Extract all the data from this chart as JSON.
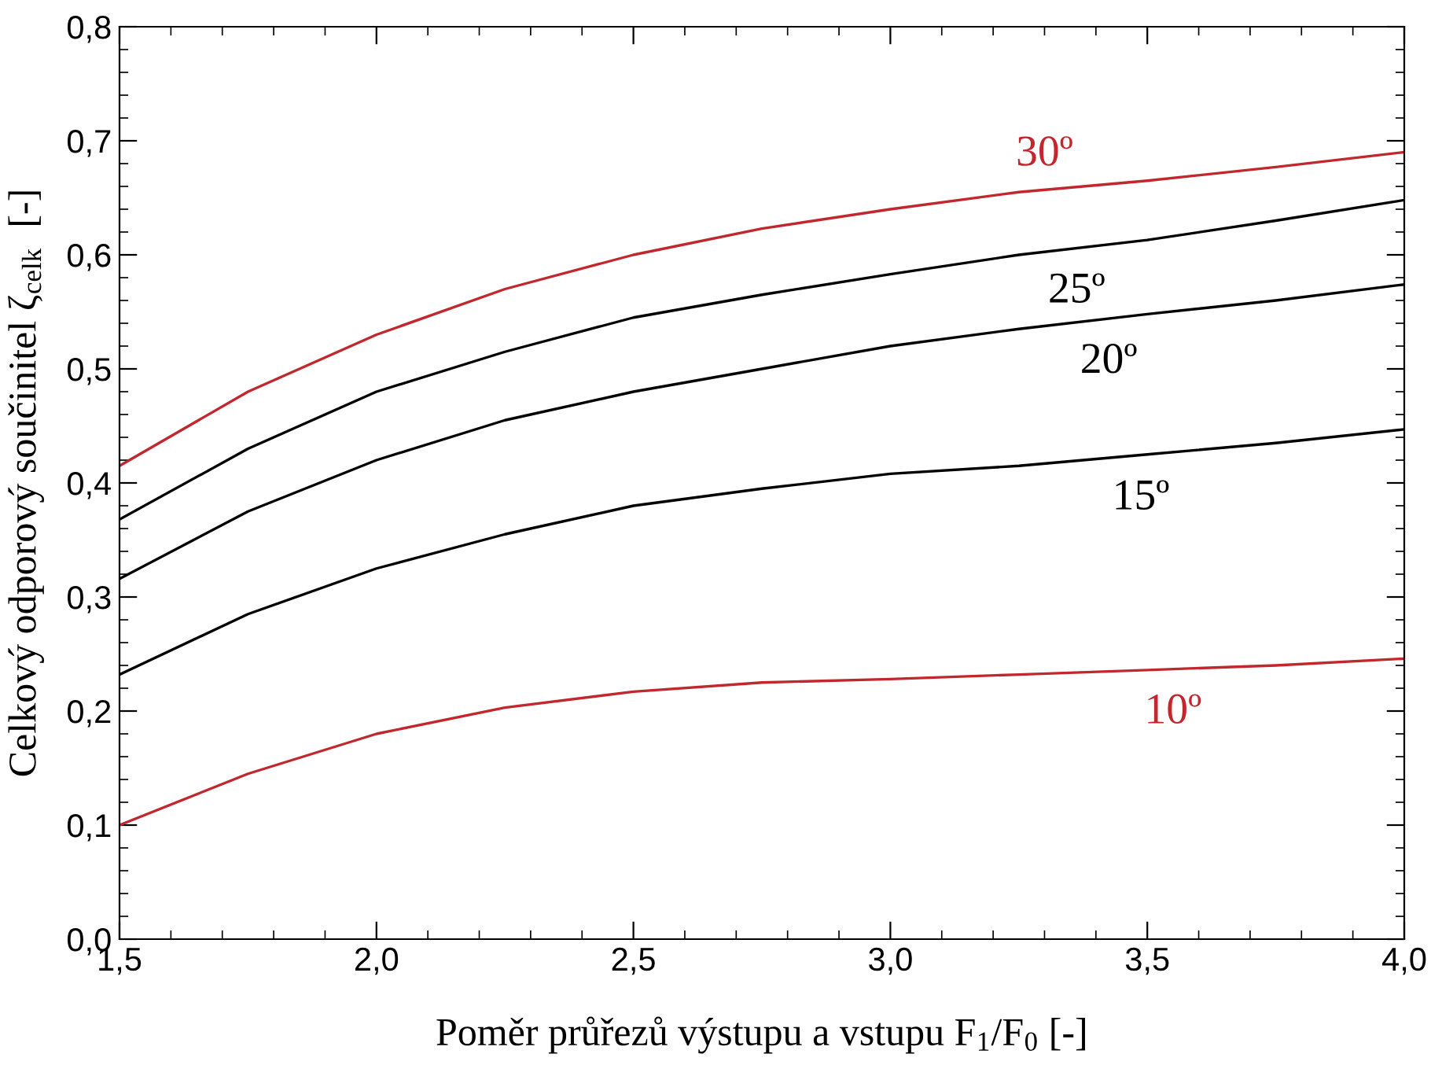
{
  "chart_data": {
    "type": "line",
    "xlabel": "Poměr průřezů výstupu a vstupu F$_{1}$/F$_{0}$ [-]",
    "ylabel": "Celkový odporový součinitel ζ$_{celk}$  [-]",
    "x": [
      1.5,
      1.75,
      2.0,
      2.25,
      2.5,
      2.75,
      3.0,
      3.25,
      3.5,
      3.75,
      4.0
    ],
    "series": [
      {
        "name": "30º",
        "color": "#c0282d",
        "values": [
          0.415,
          0.48,
          0.53,
          0.57,
          0.6,
          0.623,
          0.64,
          0.655,
          0.665,
          0.677,
          0.69
        ]
      },
      {
        "name": "25º",
        "color": "#000000",
        "values": [
          0.368,
          0.43,
          0.48,
          0.515,
          0.545,
          0.565,
          0.583,
          0.6,
          0.613,
          0.63,
          0.648
        ]
      },
      {
        "name": "20º",
        "color": "#000000",
        "values": [
          0.316,
          0.375,
          0.42,
          0.455,
          0.48,
          0.5,
          0.52,
          0.535,
          0.548,
          0.56,
          0.574
        ]
      },
      {
        "name": "15º",
        "color": "#000000",
        "values": [
          0.232,
          0.285,
          0.325,
          0.355,
          0.38,
          0.395,
          0.408,
          0.415,
          0.425,
          0.435,
          0.447
        ]
      },
      {
        "name": "10º",
        "color": "#c0282d",
        "values": [
          0.1,
          0.145,
          0.18,
          0.203,
          0.217,
          0.225,
          0.228,
          0.232,
          0.236,
          0.24,
          0.246
        ]
      }
    ],
    "xlim": [
      1.5,
      4.0
    ],
    "ylim": [
      0.0,
      0.8
    ],
    "xticks": [
      {
        "value": 1.5,
        "label": "1,5"
      },
      {
        "value": 2.0,
        "label": "2,0"
      },
      {
        "value": 2.5,
        "label": "2,5"
      },
      {
        "value": 3.0,
        "label": "3,0"
      },
      {
        "value": 3.5,
        "label": "3,5"
      },
      {
        "value": 4.0,
        "label": "4,0"
      }
    ],
    "yticks": [
      {
        "value": 0.0,
        "label": "0,0"
      },
      {
        "value": 0.1,
        "label": "0,1"
      },
      {
        "value": 0.2,
        "label": "0,2"
      },
      {
        "value": 0.3,
        "label": "0,3"
      },
      {
        "value": 0.4,
        "label": "0,4"
      },
      {
        "value": 0.5,
        "label": "0,5"
      },
      {
        "value": 0.6,
        "label": "0,6"
      },
      {
        "value": 0.7,
        "label": "0,7"
      },
      {
        "value": 0.8,
        "label": "0,8"
      }
    ],
    "grid": false,
    "legend": false,
    "marker": "none",
    "line_style": "solid"
  }
}
